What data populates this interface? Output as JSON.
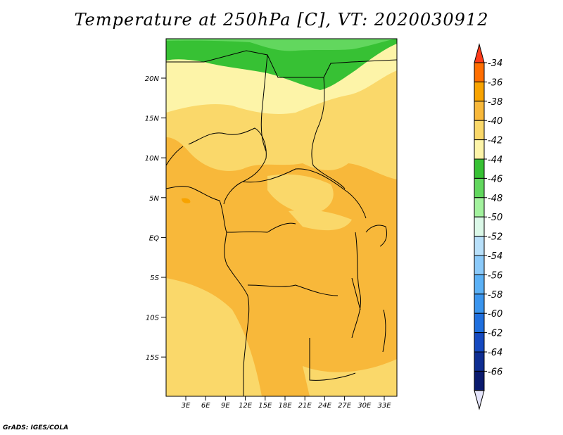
{
  "title": "Temperature at 250hPa [C], VT: 2020030912",
  "credit": "GrADS: IGES/COLA",
  "lat_labels": [
    "20N",
    "15N",
    "10N",
    "5N",
    "EQ",
    "5S",
    "10S",
    "15S"
  ],
  "lon_labels": [
    "3E",
    "6E",
    "9E",
    "12E",
    "15E",
    "18E",
    "21E",
    "24E",
    "27E",
    "30E",
    "33E"
  ],
  "colorbar": {
    "labels": [
      "-34",
      "-36",
      "-38",
      "-40",
      "-42",
      "-44",
      "-46",
      "-48",
      "-50",
      "-52",
      "-54",
      "-56",
      "-58",
      "-60",
      "-62",
      "-64",
      "-66"
    ],
    "colors": [
      "#ff3b1a",
      "#ff6e00",
      "#f8a300",
      "#f8b83a",
      "#fad86a",
      "#fdf4a8",
      "#37c134",
      "#62d75e",
      "#a3f29e",
      "#dbf8e8",
      "#b8e0fa",
      "#8bcafa",
      "#5bb1f6",
      "#3a95ee",
      "#1f6fde",
      "#1549c0",
      "#0e2d92",
      "#0a1a6e",
      "#e4e4fa"
    ]
  }
}
